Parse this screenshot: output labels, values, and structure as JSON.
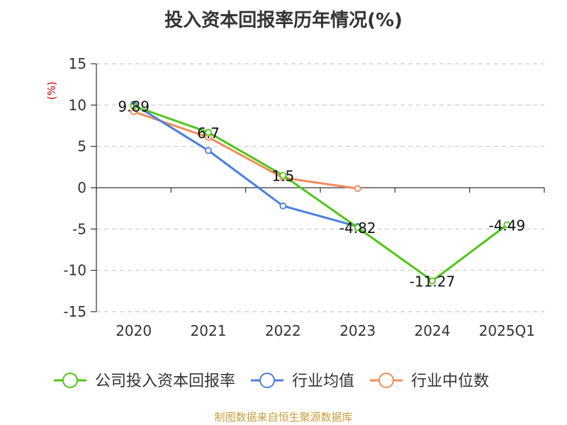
{
  "chart_data": {
    "type": "line",
    "title": "投入资本回报率历年情况(%)",
    "unit": "(%)",
    "categories": [
      "2020",
      "2021",
      "2022",
      "2023",
      "2024",
      "2025Q1"
    ],
    "ylim": [
      -15,
      15
    ],
    "yticks": [
      "15",
      "10",
      "5",
      "0",
      "-5",
      "-10",
      "-15"
    ],
    "grid": true,
    "legend_position": "bottom",
    "series": [
      {
        "name": "公司投入资本回报率",
        "color": "#52c41a",
        "values": [
          9.89,
          6.7,
          1.5,
          -4.82,
          -11.27,
          -4.49
        ],
        "labels": [
          "9.89",
          "6.7",
          "1.5",
          "-4.82",
          "-11.27",
          "-4.49"
        ]
      },
      {
        "name": "行业均值",
        "color": "#4a7fdc",
        "values": [
          10.1,
          4.5,
          -2.2,
          -4.7,
          null,
          null
        ]
      },
      {
        "name": "行业中位数",
        "color": "#f08c5a",
        "values": [
          9.2,
          6.1,
          1.2,
          -0.1,
          null,
          null
        ]
      }
    ]
  },
  "footer": {
    "source": "制图数据来自恒生聚源数据库"
  }
}
